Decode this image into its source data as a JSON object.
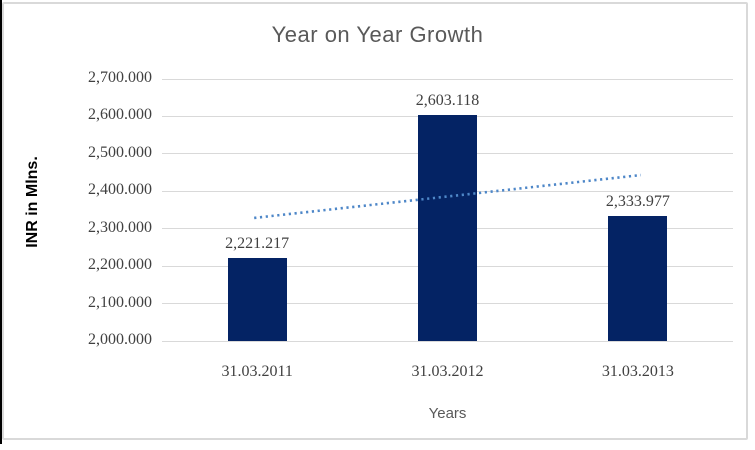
{
  "colors": {
    "bar": "#042364",
    "trendline": "#4e87c8",
    "gridline": "#d9d9d9",
    "frame_border": "#d9d9d9",
    "title_text": "#595959",
    "label_text": "#404040",
    "left_edge": "#000000"
  },
  "chart_data": {
    "type": "bar",
    "title": "Year on Year Growth",
    "xlabel": "Years",
    "ylabel": "INR in Mlns.",
    "categories": [
      "31.03.2011",
      "31.03.2012",
      "31.03.2013"
    ],
    "values": [
      2221.217,
      2603.118,
      2333.977
    ],
    "data_labels": [
      "2,221.217",
      "2,603.118",
      "2,333.977"
    ],
    "ylim": [
      2000,
      2700
    ],
    "ytick_step": 100,
    "ytick_labels": [
      "2,000.000",
      "2,100.000",
      "2,200.000",
      "2,300.000",
      "2,400.000",
      "2,500.000",
      "2,600.000",
      "2,700.000"
    ],
    "grid": true,
    "legend": false,
    "trendline": {
      "type": "linear",
      "style": "dotted"
    }
  }
}
